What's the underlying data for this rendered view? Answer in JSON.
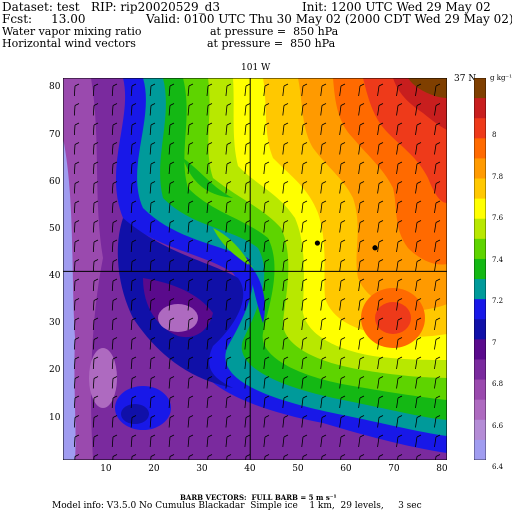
{
  "header": {
    "dataset": "Dataset: test   RIP: rip20020529_d3",
    "init": "Init: 1200 UTC Wed 29 May 02",
    "fcst": "Fcst:     13.00",
    "valid": "Valid: 0100 UTC Thu 30 May 02 (2000 CDT Wed 29 May 02)",
    "field1": "Water vapor mixing ratio",
    "field1_level": "at pressure =  850 hPa",
    "field2": "Horizontal wind vectors",
    "field2_level": "at pressure =  850 hPa"
  },
  "map": {
    "top_label": "101 W",
    "right_label": "37 N",
    "x_ticks": [
      "10",
      "20",
      "30",
      "40",
      "50",
      "60",
      "70",
      "80"
    ],
    "y_ticks": [
      "10",
      "20",
      "30",
      "40",
      "50",
      "60",
      "70",
      "80"
    ],
    "x_range": [
      1,
      81
    ],
    "y_range": [
      1,
      82
    ],
    "cross_x": 40,
    "cross_y": 41,
    "dots": [
      [
        54,
        47
      ],
      [
        66,
        46
      ]
    ]
  },
  "legend": {
    "unit_label": "g kg⁻¹",
    "labels": [
      "8",
      "7.8",
      "7.6",
      "7.4",
      "7.2",
      "7",
      "6.8",
      "6.6",
      "6.4"
    ],
    "colors": [
      "#7f3f00",
      "#c81e1e",
      "#ee3a1a",
      "#ff6a00",
      "#ff9a00",
      "#ffc800",
      "#ffff00",
      "#b8e800",
      "#5ed400",
      "#14b814",
      "#009a9a",
      "#1818e8",
      "#1010a8",
      "#5a0a8c",
      "#7a2a9e",
      "#9a4aae",
      "#ae6ac0",
      "#b48cd6",
      "#a09cf0"
    ]
  },
  "footer": {
    "barb_line": "BARB VECTORS:  FULL BARB = 5 m s⁻¹",
    "model_line": "Model info: V3.5.0 No Cumulus Blackadar  Simple ice    1 km,  29 levels,     3 sec"
  }
}
